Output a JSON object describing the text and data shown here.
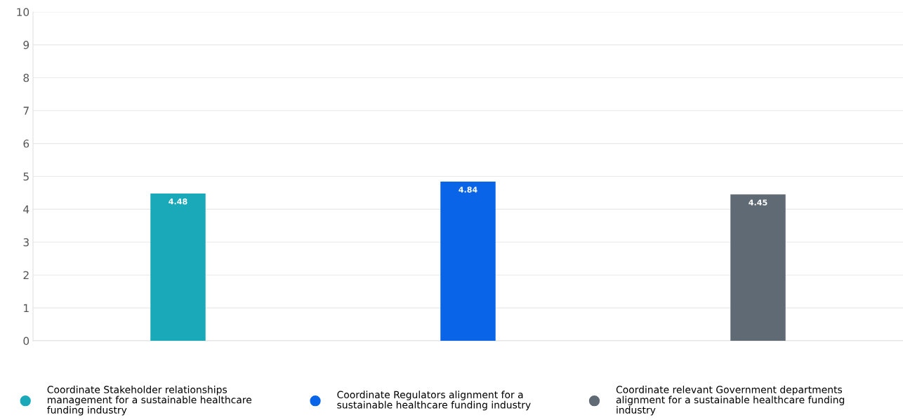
{
  "chart_data": {
    "type": "bar",
    "categories": [
      null,
      null,
      null
    ],
    "series": [
      {
        "name": "Coordinate Stakeholder relationships management for a sustainable healthcare funding industry",
        "color": "#1aa9b9",
        "values": [
          4.48,
          null,
          null
        ]
      },
      {
        "name": "Coordinate Regulators alignment for a sustainable healthcare funding industry",
        "color": "#0a64e8",
        "values": [
          null,
          4.84,
          null
        ]
      },
      {
        "name": "Coordinate relevant Government departments alignment for a sustainable healthcare funding industry",
        "color": "#5f6a74",
        "values": [
          null,
          null,
          4.45
        ]
      }
    ],
    "ylim": [
      0,
      10
    ],
    "yticks": [
      0,
      1,
      2,
      3,
      4,
      5,
      6,
      7,
      8,
      9,
      10
    ],
    "grid": "y",
    "legend": "bottom",
    "data_labels": true
  }
}
